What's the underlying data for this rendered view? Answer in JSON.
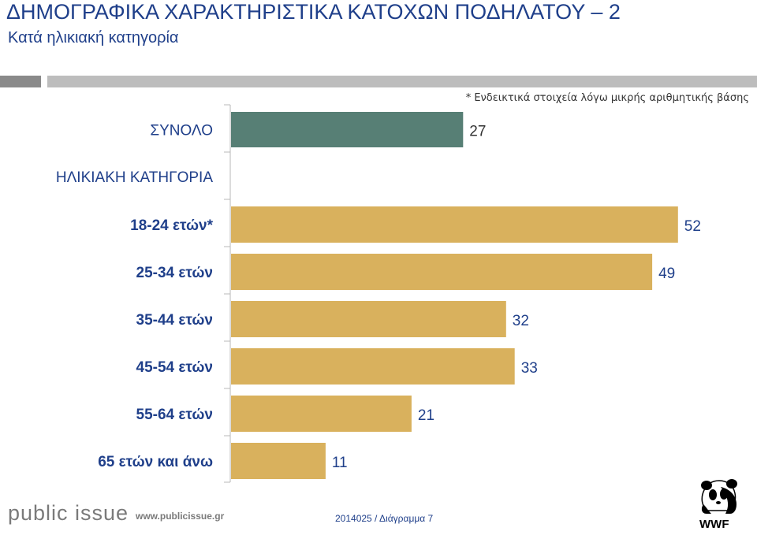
{
  "header": {
    "title": "ΔΗΜΟΓΡΑΦΙΚΑ ΧΑΡΑΚΤΗΡΙΣΤΙΚΑ ΚΑΤΟΧΩΝ ΠΟΔΗΛΑΤΟΥ – 2",
    "subtitle": "Κατά ηλικιακή κατηγορία"
  },
  "footnote": "* Ενδεικτικά στοιχεία λόγω μικρής αριθμητικής βάσης",
  "chart_data": {
    "type": "bar",
    "orientation": "horizontal",
    "section_label": "ΗΛΙΚΙΑΚΗ ΚΑΤΗΓΟΡΙΑ",
    "total": {
      "category": "ΣΥΝΟΛΟ",
      "value": 27,
      "color": "#577f75"
    },
    "categories": [
      "18-24 ετών*",
      "25-34 ετών",
      "35-44 ετών",
      "45-54 ετών",
      "55-64 ετών",
      "65 ετών και άνω"
    ],
    "values": [
      52,
      49,
      32,
      33,
      21,
      11
    ],
    "bar_color": "#d9b15d",
    "xlim": [
      0,
      55
    ],
    "grid": false
  },
  "footer": {
    "brand": "public issue",
    "website": "www.publicissue.gr",
    "reference": "2014025 / Διάγραμμα 7",
    "logo_text": "WWF"
  }
}
